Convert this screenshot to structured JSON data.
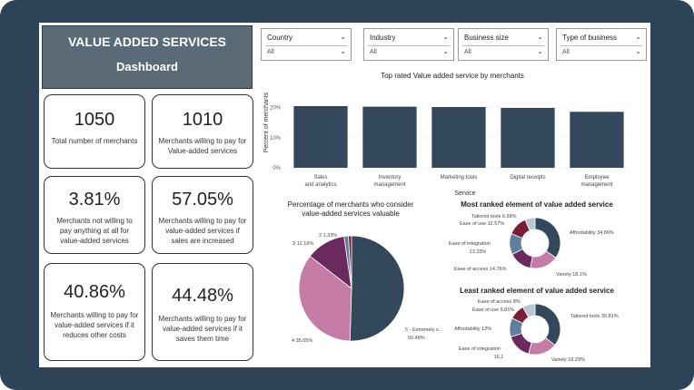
{
  "header": {
    "title": "VALUE ADDED SERVICES",
    "subtitle": "Dashboard"
  },
  "kpis": [
    {
      "value": "1050",
      "label": "Total number of merchants"
    },
    {
      "value": "1010",
      "label": "Merchants willing to pay for Value-added services"
    },
    {
      "value": "3.81%",
      "label": "Merchants not willing to pay anything at all for value-added services"
    },
    {
      "value": "57.05%",
      "label": "Merchants willing to pay for value-added services if sales are increased"
    },
    {
      "value": "40.86%",
      "label": "Merchants willing to pay for value-added services if it reduces other costs"
    },
    {
      "value": "44.48%",
      "label": "Merchants willing to pay for value-added services if it saves them time"
    }
  ],
  "slicers": [
    {
      "label": "Country",
      "value": "All"
    },
    {
      "label": "Industry",
      "value": "All"
    },
    {
      "label": "Business size",
      "value": "All"
    },
    {
      "label": "Type of business",
      "value": "All"
    }
  ],
  "colors": {
    "navy": "#33485a",
    "pink": "#c47ba5",
    "plum": "#6b2a5e",
    "steel": "#5e7e9b",
    "light": "#b7c7d6",
    "maroon": "#7a1d37",
    "frame": "#2e4358"
  },
  "chart_data": [
    {
      "type": "bar",
      "title": "Top rated Value added service by merchants",
      "xlabel": "Service",
      "ylabel": "Percent of merchants",
      "categories": [
        "Sales and analytics",
        "Inventory management",
        "Marketing tools",
        "Digital receipts",
        "Employee management"
      ],
      "values": [
        20.5,
        20.3,
        20.2,
        19.9,
        18.6
      ],
      "ylim": [
        0,
        22
      ],
      "yticks": [
        "20%",
        "10%",
        "0%"
      ]
    },
    {
      "type": "pie",
      "title": "Percentage of merchants who consider value-added services valuable",
      "slices": [
        {
          "label": "5 - Extremely v...",
          "value": 50.48,
          "pct": "50.48%",
          "color": "#33485a"
        },
        {
          "label": "4",
          "value": 35.05,
          "pct": "35.05%",
          "color": "#c47ba5"
        },
        {
          "label": "3",
          "value": 12.19,
          "pct": "12.19%",
          "color": "#6b2a5e"
        },
        {
          "label": "2",
          "value": 1.33,
          "pct": "1.33%",
          "color": "#5e7e9b"
        },
        {
          "label": "1",
          "value": 0.95,
          "pct": "",
          "color": "#7a1d37"
        }
      ]
    },
    {
      "type": "pie",
      "title": "Most ranked element of value added service",
      "slices": [
        {
          "label": "Affordability",
          "pct": "34.86%",
          "value": 34.86,
          "color": "#33485a"
        },
        {
          "label": "Variety",
          "pct": "18.1%",
          "value": 18.1,
          "color": "#c47ba5"
        },
        {
          "label": "Ease of access",
          "pct": "14.76%",
          "value": 14.76,
          "color": "#6b2a5e"
        },
        {
          "label": "Ease of integration",
          "pct": "13.33%",
          "value": 13.33,
          "color": "#5e7e9b"
        },
        {
          "label": "Ease of use",
          "pct": "12.57%",
          "value": 12.57,
          "color": "#7a1d37"
        },
        {
          "label": "Tailored tools",
          "pct": "6.38%",
          "value": 6.38,
          "color": "#b7c7d6"
        }
      ]
    },
    {
      "type": "pie",
      "title": "Least ranked element of value added service",
      "slices": [
        {
          "label": "Tailored tools",
          "pct": "35.81%",
          "value": 35.81,
          "color": "#33485a"
        },
        {
          "label": "Variety",
          "pct": "18.29%",
          "value": 18.29,
          "color": "#c47ba5"
        },
        {
          "label": "Ease of integration",
          "pct": "16.1",
          "value": 16.1,
          "color": "#6b2a5e"
        },
        {
          "label": "Affordability",
          "pct": "12%",
          "value": 12,
          "color": "#5e7e9b"
        },
        {
          "label": "Ease of use",
          "pct": "9.81%",
          "value": 9.81,
          "color": "#7a1d37"
        },
        {
          "label": "Ease of access",
          "pct": "8%",
          "value": 8,
          "color": "#b7c7d6"
        }
      ]
    }
  ]
}
